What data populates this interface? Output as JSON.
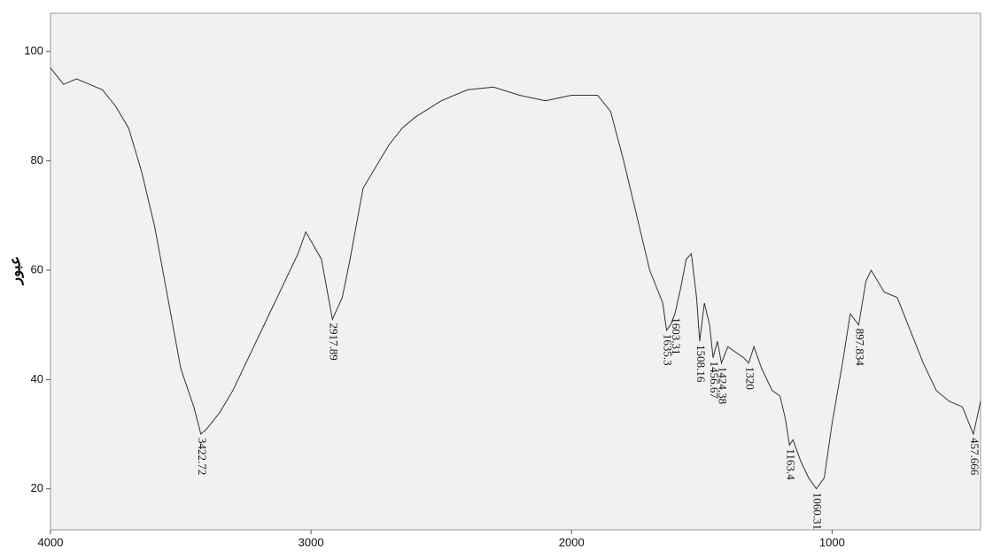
{
  "chart_data": {
    "type": "line",
    "y_label": "عبور",
    "x": [
      4000,
      3950,
      3900,
      3850,
      3800,
      3750,
      3700,
      3650,
      3600,
      3550,
      3500,
      3450,
      3422.72,
      3400,
      3350,
      3300,
      3250,
      3200,
      3150,
      3100,
      3050,
      3020,
      2960,
      2917.89,
      2880,
      2850,
      2800,
      2750,
      2700,
      2650,
      2600,
      2500,
      2400,
      2300,
      2200,
      2100,
      2000,
      1900,
      1850,
      1800,
      1750,
      1700,
      1650,
      1635.3,
      1620,
      1603.31,
      1580,
      1560,
      1540,
      1520,
      1508.16,
      1490,
      1470,
      1456.67,
      1440,
      1424.38,
      1400,
      1370,
      1340,
      1320,
      1300,
      1270,
      1230,
      1200,
      1180,
      1163.4,
      1150,
      1120,
      1090,
      1060.31,
      1030,
      1000,
      960,
      930,
      897.834,
      870,
      850,
      800,
      750,
      700,
      650,
      600,
      550,
      500,
      457.666,
      430
    ],
    "values": [
      97,
      94,
      95,
      94,
      93,
      90,
      86,
      78,
      68,
      55,
      42,
      35,
      30,
      31,
      34,
      38,
      43,
      48,
      53,
      58,
      63,
      67,
      62,
      51,
      55,
      62,
      75,
      79,
      83,
      86,
      88,
      91,
      93,
      93.5,
      92,
      91,
      92,
      92,
      89,
      80,
      70,
      60,
      54,
      49,
      50,
      52,
      57,
      62,
      63,
      55,
      47,
      54,
      50,
      44,
      47,
      43,
      46,
      45,
      44,
      43,
      46,
      42,
      38,
      37,
      33,
      28,
      29,
      25,
      22,
      20,
      22,
      32,
      43,
      52,
      50,
      58,
      60,
      56,
      55,
      49,
      43,
      38,
      36,
      35,
      30,
      36
    ],
    "color": "#333333",
    "xlim": [
      4000,
      430
    ],
    "xticks": [
      4000,
      3000,
      2000,
      1000
    ],
    "ylim": [
      12.5,
      107
    ],
    "yticks": [
      20,
      40,
      60,
      80,
      100
    ],
    "annotations": [
      {
        "x": 3422.72,
        "y": 30
      },
      {
        "x": 2917.89,
        "y": 51
      },
      {
        "x": 1635.3,
        "y": 49
      },
      {
        "x": 1603.31,
        "y": 52
      },
      {
        "x": 1508.16,
        "y": 47
      },
      {
        "x": 1456.67,
        "y": 44
      },
      {
        "x": 1424.38,
        "y": 43
      },
      {
        "x": 1320,
        "y": 43
      },
      {
        "x": 1163.4,
        "y": 28
      },
      {
        "x": 1060.31,
        "y": 20
      },
      {
        "x": 897.834,
        "y": 50
      },
      {
        "x": 457.666,
        "y": 30
      }
    ]
  }
}
